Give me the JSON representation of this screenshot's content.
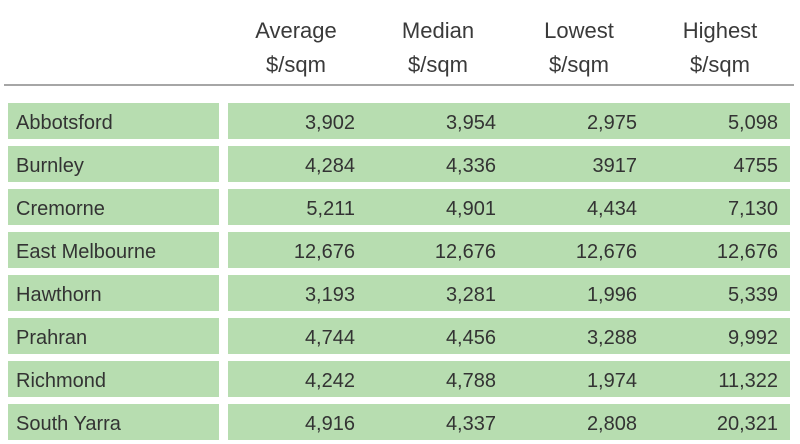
{
  "columns": [
    {
      "line1": "Average",
      "line2": "$/sqm"
    },
    {
      "line1": "Median",
      "line2": "$/sqm"
    },
    {
      "line1": "Lowest",
      "line2": "$/sqm"
    },
    {
      "line1": "Highest",
      "line2": "$/sqm"
    }
  ],
  "rows": [
    {
      "suburb": "Abbotsford",
      "values": [
        "3,902",
        "3,954",
        "2,975",
        "5,098"
      ]
    },
    {
      "suburb": "Burnley",
      "values": [
        "4,284",
        "4,336",
        "3917",
        "4755"
      ]
    },
    {
      "suburb": "Cremorne",
      "values": [
        "5,211",
        "4,901",
        "4,434",
        "7,130"
      ]
    },
    {
      "suburb": "East Melbourne",
      "values": [
        "12,676",
        "12,676",
        "12,676",
        "12,676"
      ]
    },
    {
      "suburb": "Hawthorn",
      "values": [
        "3,193",
        "3,281",
        "1,996",
        "5,339"
      ]
    },
    {
      "suburb": "Prahran",
      "values": [
        "4,744",
        "4,456",
        "3,288",
        "9,992"
      ]
    },
    {
      "suburb": "Richmond",
      "values": [
        "4,242",
        "4,788",
        "1,974",
        "11,322"
      ]
    },
    {
      "suburb": "South Yarra",
      "values": [
        "4,916",
        "4,337",
        "2,808",
        "20,321"
      ]
    }
  ],
  "colors": {
    "row_fill": "#b7ddb0",
    "rule": "#a6a6a6",
    "text": "#333333"
  }
}
